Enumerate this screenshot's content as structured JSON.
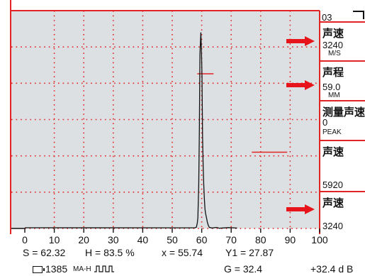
{
  "scope": {
    "x_axis": {
      "min": 0,
      "max": 100,
      "ticks": [
        "0",
        "10",
        "20",
        "30",
        "40",
        "50",
        "60",
        "70",
        "80",
        "90",
        "100"
      ]
    },
    "grid": "dotted-red",
    "colors": {
      "background": "#dde0e3",
      "grid": "#e02424",
      "trace": "#111111",
      "gate": "#e02424"
    },
    "peak_position": 60,
    "gates": [
      {
        "start": 58.5,
        "end": 64,
        "level": 0.71
      },
      {
        "start": 77,
        "end": 89,
        "level": 0.35
      }
    ]
  },
  "side_panel": {
    "top_label": "03",
    "items": [
      {
        "title": "声速",
        "value": "3240",
        "unit": "M/S"
      },
      {
        "title": "声程",
        "value": "59.0",
        "unit": "MM"
      },
      {
        "title": "测量声速",
        "value": "0",
        "unit": "PEAK"
      },
      {
        "title": "声速",
        "value": "5920",
        "unit": ""
      },
      {
        "title": "声速",
        "value": "3240",
        "unit": ""
      }
    ]
  },
  "status": {
    "s": "S = 62.32",
    "h": "H = 83.5 %",
    "x": "x = 55.74",
    "y1": "Y1 = 27.87",
    "battery_value": "1385",
    "mode": "MA-H",
    "pulse_icon": "pulse-wave-icon",
    "gain": "G = 32.4",
    "gain_step": "+32.4 d B"
  }
}
